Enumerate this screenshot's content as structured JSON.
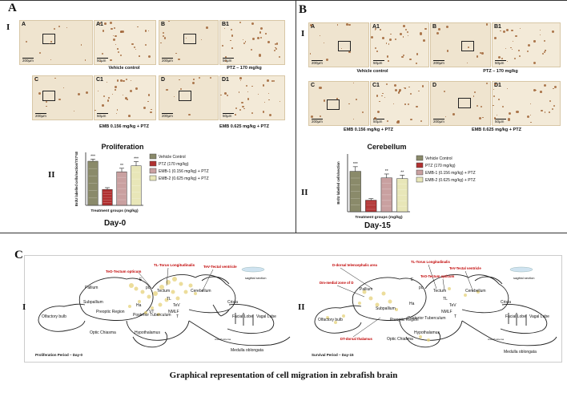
{
  "panelA": {
    "letter": "A",
    "row1": "I",
    "row2": "II",
    "images": [
      {
        "label": "A",
        "scale": "200µm"
      },
      {
        "label": "A1",
        "scale": "50µm"
      },
      {
        "label": "B",
        "scale": "200µm"
      },
      {
        "label": "B1",
        "scale": "50µm"
      },
      {
        "label": "C",
        "scale": "200µm"
      },
      {
        "label": "C1",
        "scale": "50µm"
      },
      {
        "label": "D",
        "scale": "200µm"
      },
      {
        "label": "D1",
        "scale": "50µm"
      }
    ],
    "captions": [
      "Vehicle control",
      "PTZ – 170 mg/kg",
      "EMB 0.156 mg/kg + PTZ",
      "EMB 0.625 mg/kg + PTZ"
    ],
    "day": "Day-0"
  },
  "panelB": {
    "letter": "B",
    "row1": "I",
    "row2": "II",
    "images": [
      {
        "label": "A",
        "scale": "200µm"
      },
      {
        "label": "A1",
        "scale": "50µm"
      },
      {
        "label": "B",
        "scale": "200µm"
      },
      {
        "label": "B1",
        "scale": "50µm"
      },
      {
        "label": "C",
        "scale": "200µm"
      },
      {
        "label": "C1",
        "scale": "50µm"
      },
      {
        "label": "D",
        "scale": "200µm"
      },
      {
        "label": "D1",
        "scale": "50µm"
      }
    ],
    "captions": [
      "Vehicle control",
      "PTZ – 170 mg/kg",
      "EMB 0.156 mg/kg + PTZ",
      "EMB 0.625 mg/kg + PTZ"
    ],
    "day": "Day-15"
  },
  "colors": {
    "vehicle": "#8a8a6a",
    "ptz": "#b03030",
    "emb1": "#c9a0a0",
    "emb2": "#e8e6b8",
    "tissue": "#efe4cf",
    "stain": "#9a5a2a",
    "red_label": "#c00000"
  },
  "chart_data": [
    {
      "type": "bar",
      "title": "Proliferation",
      "xlabel": "Treatment groups (mg/kg)",
      "ylabel": "BrdU labelled cells/section/7X7*40",
      "categories": [
        "Vehicle Control",
        "PTZ (170 mg/kg)",
        "EMB-1 (0.156 mg/kg) + PTZ",
        "EMB-2 (0.625 mg/kg) + PTZ"
      ],
      "values": [
        125,
        45,
        95,
        112
      ],
      "errors": [
        6,
        5,
        10,
        12
      ],
      "significance": [
        "***",
        "",
        "**",
        "***"
      ],
      "ylim": [
        0,
        150
      ],
      "legend": "right"
    },
    {
      "type": "bar",
      "title": "Cerebellum",
      "xlabel": "Treatment groups (mg/kg)",
      "ylabel": "BrdU labelled cells/section",
      "categories": [
        "Vehicle Control",
        "PTZ (170 mg/kg)",
        "EMB-1 (0.156 mg/kg) + PTZ",
        "EMB-2 (0.625 mg/kg) + PTZ"
      ],
      "values": [
        105,
        30,
        88,
        86
      ],
      "errors": [
        12,
        4,
        10,
        9
      ],
      "significance": [
        "***",
        "",
        "**",
        "**"
      ],
      "ylim": [
        0,
        150
      ],
      "legend": "right"
    }
  ],
  "panelC": {
    "letter": "C",
    "left_roman": "I",
    "right_roman": "II",
    "left": {
      "red_labels": [
        "TL-Torus Longitudinalis",
        "TeO-Tectum opticum",
        "TeV-Tectal ventricle"
      ],
      "labels": [
        "Pallium",
        "Subpallium",
        "Olfactory bulb",
        "Preoptic Region",
        "Optic Chiasma",
        "Hypothalamus",
        "Posterior Tuberculum",
        "Tectum",
        "Cerebellum",
        "Crista",
        "Facial Lobe",
        "Vagal Lobe",
        "Medulla oblongata",
        "Ha",
        "VT",
        "E",
        "pc",
        "TL",
        "TeV",
        "NMLF",
        "T",
        "Area Postrema"
      ],
      "sagittal": "sagittal section",
      "footer": "Proliferation Period – Day-0"
    },
    "right": {
      "red_labels": [
        "D-dorsal telencephalic area",
        "TL-Torus Longitudinalis",
        "TeO-Tectum opticum",
        "TeV-Tectal ventricle",
        "Dm-medial zone of D",
        "DT-dorsal thalamus"
      ],
      "labels": [
        "Pallium",
        "Subpallium",
        "Olfactory bulb",
        "Preoptic Region",
        "Optic Chiasma",
        "Hypothalamus",
        "Posterior Tuberculum",
        "Tectum",
        "Cerebellum",
        "Crista",
        "Facial Lobe",
        "Vagal Lobe",
        "Medulla oblongata",
        "Ha",
        "E",
        "pc",
        "TL",
        "TeV",
        "NMLF",
        "T",
        "Area Postrema"
      ],
      "sagittal": "sagittal section",
      "footer": "Survival Period – Day-15"
    },
    "caption": "Graphical representation of cell migration in zebrafish brain"
  }
}
